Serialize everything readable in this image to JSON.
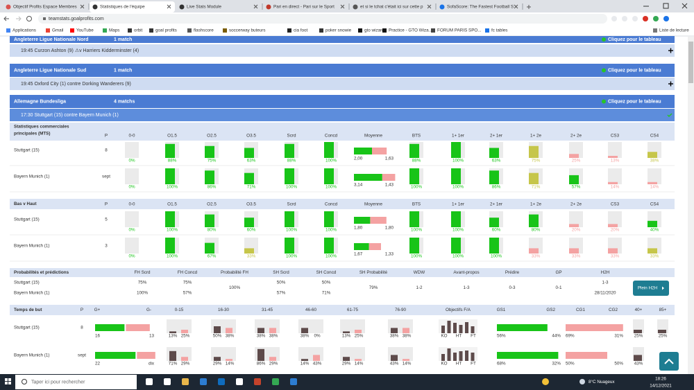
{
  "browser": {
    "tabs": [
      "Objectif Profits Espace Membres",
      "Statistiques de l'équipe",
      "Live Stats Module",
      "Pari en direct - Pari sur le Sport",
      "et si le tchat c'était ici sur cette p",
      "SofaScore: The Fastest Football S"
    ],
    "url": "teamstats.goalprofits.com",
    "bookmarks": [
      "Applications",
      "Gmail",
      "YouTube",
      "Maps",
      "orbit",
      "goal profits",
      "flashscore",
      "soccerway buteurs",
      "cia foot",
      "poker snowie",
      "gto wizard",
      "Practice - GTO Wiza...",
      "FORUM PARIS SPO...",
      "fc tables"
    ],
    "reading_list": "Liste de lecture"
  },
  "leagues": [
    {
      "title": "Angleterre Ligue Nationale Nord",
      "count": "1 match",
      "link": "Cliquez pour le tableau",
      "matches": [
        "19:45 Curzon Ashton (9) ⚠v Harriers Kidderminster (4)"
      ]
    },
    {
      "title": "Angleterre Ligue Nationale Sud",
      "count": "1 match",
      "link": "Cliquez pour le tableau",
      "matches": [
        "19:45 Oxford City (1) contre Dorking Wanderers (9)"
      ]
    },
    {
      "title": "Allemagne Bundesliga",
      "count": "4 matchs",
      "link": "Cliquez pour le tableau",
      "matches": [
        "17:30 Stuttgart (15) contre Bayern Munich (1)"
      ]
    }
  ],
  "palette": {
    "green": "#18c418",
    "olive": "#c6c64a",
    "pink": "#f4a2a2"
  },
  "stats_tables": [
    {
      "title": [
        "Statistiques commerciales",
        "principales (MTS)"
      ],
      "columns": [
        "P",
        "0-0",
        "O1.5",
        "O2.5",
        "O3.5",
        "Scrd",
        "Concd",
        "Moyenne",
        "BTS",
        "1+ 1er",
        "2+ 1er",
        "1+ 2e",
        "2+ 2e",
        "CS3",
        "CS4"
      ],
      "rows": [
        {
          "team": "Stuttgart (15)",
          "p": "8",
          "values": [
            0,
            88,
            75,
            63,
            88,
            100,
            88,
            100,
            63,
            75,
            25,
            13,
            38
          ],
          "labels": [
            "0%",
            "88%",
            "75%",
            "63%",
            "88%",
            "100%",
            "88%",
            "100%",
            "63%",
            "75%",
            "25%",
            "13%",
            "38%"
          ],
          "colors": [
            "green",
            "green",
            "green",
            "green",
            "green",
            "green",
            "green",
            "green",
            "green",
            "olive",
            "pink",
            "pink",
            "olive"
          ],
          "avg": [
            2.0,
            1.63
          ],
          "avg_labels": [
            "2,00",
            "1,63"
          ]
        },
        {
          "team": "Bayern Munich (1)",
          "p": "sept",
          "values": [
            0,
            100,
            86,
            71,
            100,
            100,
            100,
            100,
            86,
            71,
            57,
            14,
            14
          ],
          "labels": [
            "0%",
            "100%",
            "86%",
            "71%",
            "100%",
            "100%",
            "100%",
            "100%",
            "86%",
            "71%",
            "57%",
            "14%",
            "14%"
          ],
          "colors": [
            "green",
            "green",
            "green",
            "green",
            "green",
            "green",
            "green",
            "green",
            "green",
            "olive",
            "green",
            "pink",
            "pink"
          ],
          "avg": [
            3.14,
            1.43
          ],
          "avg_labels": [
            "3,14",
            "1,43"
          ]
        }
      ]
    },
    {
      "title": [
        "Bas v Haut"
      ],
      "columns": [
        "P",
        "0-0",
        "O1.5",
        "O2.5",
        "O3.5",
        "Scrd",
        "Concd",
        "Moyenne",
        "BTS",
        "1+ 1er",
        "2+ 1er",
        "1+ 2e",
        "2+ 2e",
        "CS3",
        "CS4"
      ],
      "rows": [
        {
          "team": "Stuttgart (15)",
          "p": "5",
          "values": [
            0,
            100,
            80,
            60,
            100,
            100,
            100,
            100,
            60,
            80,
            20,
            20,
            40
          ],
          "labels": [
            "0%",
            "100%",
            "80%",
            "60%",
            "100%",
            "100%",
            "100%",
            "100%",
            "60%",
            "80%",
            "20%",
            "20%",
            "40%"
          ],
          "colors": [
            "green",
            "green",
            "green",
            "green",
            "green",
            "green",
            "green",
            "green",
            "green",
            "green",
            "pink",
            "pink",
            "green"
          ],
          "avg": [
            1.8,
            1.8
          ],
          "avg_labels": [
            "1,80",
            "1,80"
          ]
        },
        {
          "team": "Bayern Munich (1)",
          "p": "3",
          "values": [
            0,
            100,
            67,
            33,
            100,
            100,
            100,
            100,
            100,
            33,
            33,
            33,
            33
          ],
          "labels": [
            "0%",
            "100%",
            "67%",
            "33%",
            "100%",
            "100%",
            "100%",
            "100%",
            "100%",
            "33%",
            "33%",
            "33%",
            "33%"
          ],
          "colors": [
            "green",
            "green",
            "green",
            "olive",
            "green",
            "green",
            "green",
            "green",
            "green",
            "pink",
            "pink",
            "pink",
            "olive"
          ],
          "avg": [
            1.67,
            1.33
          ],
          "avg_labels": [
            "1,67",
            "1,33"
          ]
        }
      ]
    }
  ],
  "predictions": {
    "title": "Probabilités et prédictions",
    "columns": [
      "FH Scrd",
      "FH Concd",
      "Probabilité FH",
      "SH Scrd",
      "SH Concd",
      "SH Probabilité",
      "WDW",
      "Avant-propos",
      "Prédire",
      "GP",
      "H2H"
    ],
    "rows": [
      {
        "team": "Stuttgart (15)",
        "cells": [
          "75%",
          "75%",
          null,
          "50%",
          "50%",
          null,
          null,
          null,
          null,
          null,
          "1-3"
        ]
      },
      {
        "team": "Bayern Munich (1)",
        "cells": [
          "100%",
          "57%",
          null,
          "57%",
          "71%",
          null,
          null,
          null,
          null,
          null,
          "28/11/2020"
        ]
      }
    ],
    "merged": [
      null,
      null,
      "100%",
      null,
      null,
      "79%",
      "1-2",
      "1-3",
      "0-3",
      "0-1",
      null
    ],
    "button": "Plein H2H"
  },
  "goal_times": {
    "title": "Temps de but",
    "columns": [
      "P",
      "G+",
      "G-",
      "0-15",
      "16-30",
      "31-45",
      "46-60",
      "61-75",
      "76-90",
      "Objectifs F/A",
      "GS1",
      "GS2",
      "CG1",
      "CG2",
      "40+",
      "85+"
    ],
    "rows": [
      {
        "team": "Stuttgart (15)",
        "p": "8",
        "goals": [
          16,
          13
        ],
        "goal_labels": [
          "16",
          "13"
        ],
        "periods": [
          [
            13,
            25
          ],
          [
            50,
            38
          ],
          [
            38,
            38
          ],
          [
            38,
            0
          ],
          [
            13,
            25
          ],
          [
            38,
            38
          ]
        ],
        "period_labels": [
          [
            "13%",
            "25%"
          ],
          [
            "50%",
            "38%"
          ],
          [
            "38%",
            "38%"
          ],
          [
            "38%",
            "0%"
          ],
          [
            "13%",
            "25%"
          ],
          [
            "38%",
            "38%"
          ]
        ],
        "fa": [
          55,
          90,
          75,
          60,
          80,
          50
        ],
        "fa_labels": [
          "KO",
          "HT",
          "FT"
        ],
        "gs": [
          56,
          44
        ],
        "gs_labels": [
          "56%",
          "44%"
        ],
        "cg": [
          69,
          31
        ],
        "cg_labels": [
          "69%",
          "31%"
        ],
        "late": [
          25,
          25
        ],
        "late_labels": [
          "25%",
          "25%"
        ]
      },
      {
        "team": "Bayern Munich (1)",
        "p": "sept",
        "goals": [
          22,
          10
        ],
        "goal_labels": [
          "22",
          "dix"
        ],
        "periods": [
          [
            71,
            29
          ],
          [
            29,
            14
          ],
          [
            86,
            29
          ],
          [
            14,
            43
          ],
          [
            29,
            14
          ],
          [
            43,
            14
          ]
        ],
        "period_labels": [
          [
            "71%",
            "29%"
          ],
          [
            "29%",
            "14%"
          ],
          [
            "86%",
            "29%"
          ],
          [
            "14%",
            "43%"
          ],
          [
            "29%",
            "14%"
          ],
          [
            "43%",
            "14%"
          ]
        ],
        "fa": [
          50,
          90,
          60,
          70,
          75,
          60
        ],
        "fa_labels": [
          "KO",
          "HT",
          "FT"
        ],
        "gs": [
          68,
          32
        ],
        "gs_labels": [
          "68%",
          "32%"
        ],
        "cg": [
          50,
          50
        ],
        "cg_labels": [
          "50%",
          "50%"
        ],
        "late": [
          43
        ],
        "late_labels": [
          "43%"
        ]
      }
    ]
  },
  "taskbar": {
    "search": "Taper ici pour rechercher",
    "weather": "8°C Nuageux",
    "time": "18:26",
    "date": "14/12/2021"
  }
}
